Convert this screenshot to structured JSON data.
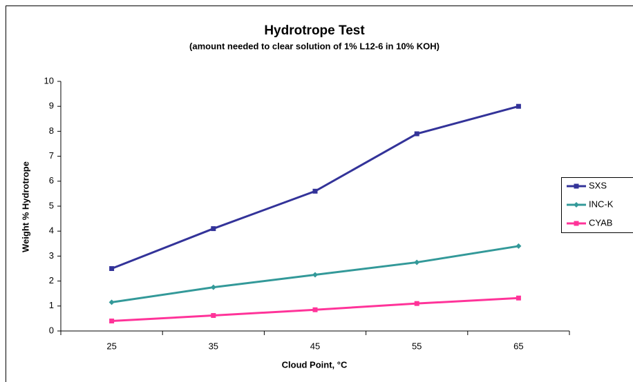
{
  "chart_data": {
    "type": "line",
    "title": "Hydrotrope Test",
    "subtitle": "(amount needed to clear solution of 1% L12-6 in 10% KOH)",
    "x_label": "Cloud Point, °C",
    "y_label": "Weight % Hydrotrope",
    "categories": [
      "25",
      "35",
      "45",
      "55",
      "65"
    ],
    "series": [
      {
        "name": "SXS",
        "color": "#333399",
        "marker": "square",
        "values": [
          2.5,
          4.1,
          5.6,
          7.9,
          9.0
        ]
      },
      {
        "name": "INC-K",
        "color": "#339999",
        "marker": "diamond",
        "values": [
          1.15,
          1.75,
          2.25,
          2.75,
          3.4
        ]
      },
      {
        "name": "CYAB",
        "color": "#ff3399",
        "marker": "square",
        "values": [
          0.4,
          0.62,
          0.85,
          1.1,
          1.32
        ]
      }
    ],
    "ylim": [
      0,
      10
    ],
    "yticks": [
      0,
      1,
      2,
      3,
      4,
      5,
      6,
      7,
      8,
      9,
      10
    ],
    "grid": false,
    "legend": "right"
  }
}
